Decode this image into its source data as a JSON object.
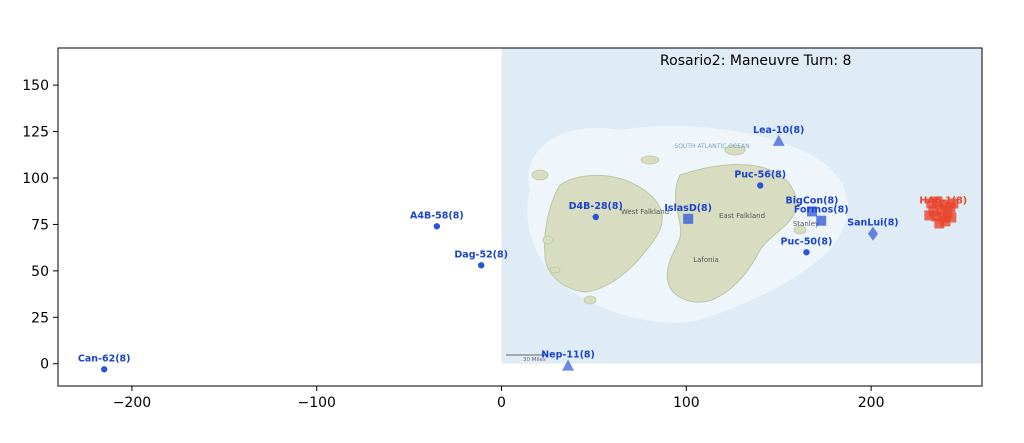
{
  "chart_data": {
    "type": "scatter",
    "title": "Rosario2: Maneuvre Turn:  8",
    "xlim": [
      -240,
      260
    ],
    "ylim": [
      -12,
      170
    ],
    "x_ticks": [
      -200,
      -100,
      0,
      100,
      200
    ],
    "y_ticks": [
      0,
      25,
      50,
      75,
      100,
      125,
      150
    ],
    "x_tick_labels": [
      "−200",
      "−100",
      "0",
      "100",
      "200"
    ],
    "y_tick_labels": [
      "0",
      "25",
      "50",
      "75",
      "100",
      "125",
      "150"
    ],
    "grid": false,
    "background_map": {
      "x_range": [
        0,
        260
      ],
      "y_range": [
        0,
        170
      ],
      "ocean_label": "SOUTH ATLANTIC OCEAN",
      "place_labels": [
        "West Falkland",
        "East Falkland",
        "Lafonia",
        "Stanley"
      ],
      "scale_label": "30 Miles"
    },
    "colors": {
      "blue": "#2b55d9",
      "red": "#e8452c",
      "map_sea": "#dfecf6"
    },
    "units": [
      {
        "label": "Can-62(8)",
        "x": -215,
        "y": -3,
        "side": "blue",
        "marker": "circle"
      },
      {
        "label": "A4B-58(8)",
        "x": -35,
        "y": 74,
        "side": "blue",
        "marker": "circle"
      },
      {
        "label": "Dag-52(8)",
        "x": -11,
        "y": 53,
        "side": "blue",
        "marker": "circle"
      },
      {
        "label": "Nep-11(8)",
        "x": 36,
        "y": -1,
        "side": "blue",
        "marker": "triangle"
      },
      {
        "label": "D4B-28(8)",
        "x": 51,
        "y": 79,
        "side": "blue",
        "marker": "circle"
      },
      {
        "label": "IslasD(8)",
        "x": 101,
        "y": 78,
        "side": "blue",
        "marker": "square"
      },
      {
        "label": "Lea-10(8)",
        "x": 150,
        "y": 120,
        "side": "blue",
        "marker": "triangle"
      },
      {
        "label": "Puc-56(8)",
        "x": 140,
        "y": 96,
        "side": "blue",
        "marker": "circle"
      },
      {
        "label": "BigCon(8)",
        "x": 168,
        "y": 82,
        "side": "blue",
        "marker": "square"
      },
      {
        "label": "Formos(8)",
        "x": 173,
        "y": 77,
        "side": "blue",
        "marker": "square"
      },
      {
        "label": "Puc-50(8)",
        "x": 165,
        "y": 60,
        "side": "blue",
        "marker": "circle"
      },
      {
        "label": "SanLui(8)",
        "x": 201,
        "y": 70,
        "side": "blue",
        "marker": "diamond"
      },
      {
        "label": "HA6-1(8)",
        "x": 238,
        "y": 82,
        "side": "red",
        "marker": "cluster"
      }
    ]
  }
}
